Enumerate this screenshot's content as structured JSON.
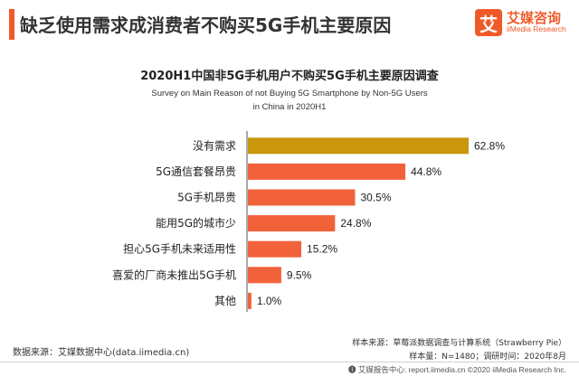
{
  "header": {
    "title": "缺乏使用需求成消费者不购买5G手机主要原因",
    "logo_mark": "艾",
    "logo_cn": "艾媒咨询",
    "logo_en": "iiMedia Research"
  },
  "colors": {
    "accent": "#f05a28",
    "highlight_bar": "#c9960c",
    "bar": "#f2623a",
    "axis": "#555555"
  },
  "chart_data": {
    "type": "bar",
    "orientation": "horizontal",
    "title": "2020H1中国非5G手机用户不购买5G手机主要原因调查",
    "subtitle_lines": [
      "Survey on Main Reason of not Buying 5G Smartphone by Non-5G Users",
      "in China in 2020H1"
    ],
    "categories": [
      "没有需求",
      "5G通信套餐昂贵",
      "5G手机昂贵",
      "能用5G的城市少",
      "担心5G手机未来适用性",
      "喜爱的厂商未推出5G手机",
      "其他"
    ],
    "values": [
      62.8,
      44.8,
      30.5,
      24.8,
      15.2,
      9.5,
      1.0
    ],
    "value_labels": [
      "62.8%",
      "44.8%",
      "30.5%",
      "24.8%",
      "15.2%",
      "9.5%",
      "1.0%"
    ],
    "unit": "%",
    "xlim": [
      0,
      70
    ],
    "grid": false,
    "legend": "none"
  },
  "notes": {
    "sample_source": "样本来源：草莓派数据调查与计算系统（Strawberry Pie）",
    "sample_size": "样本量：N=1480；调研时间：2020年8月",
    "data_source": "数据来源：艾媒数据中心(data.iimedia.cn)"
  },
  "footer": {
    "text": "🅘 艾媒报告中心: report.iimedia.cn   ©2020  iiMedia Research  Inc."
  }
}
